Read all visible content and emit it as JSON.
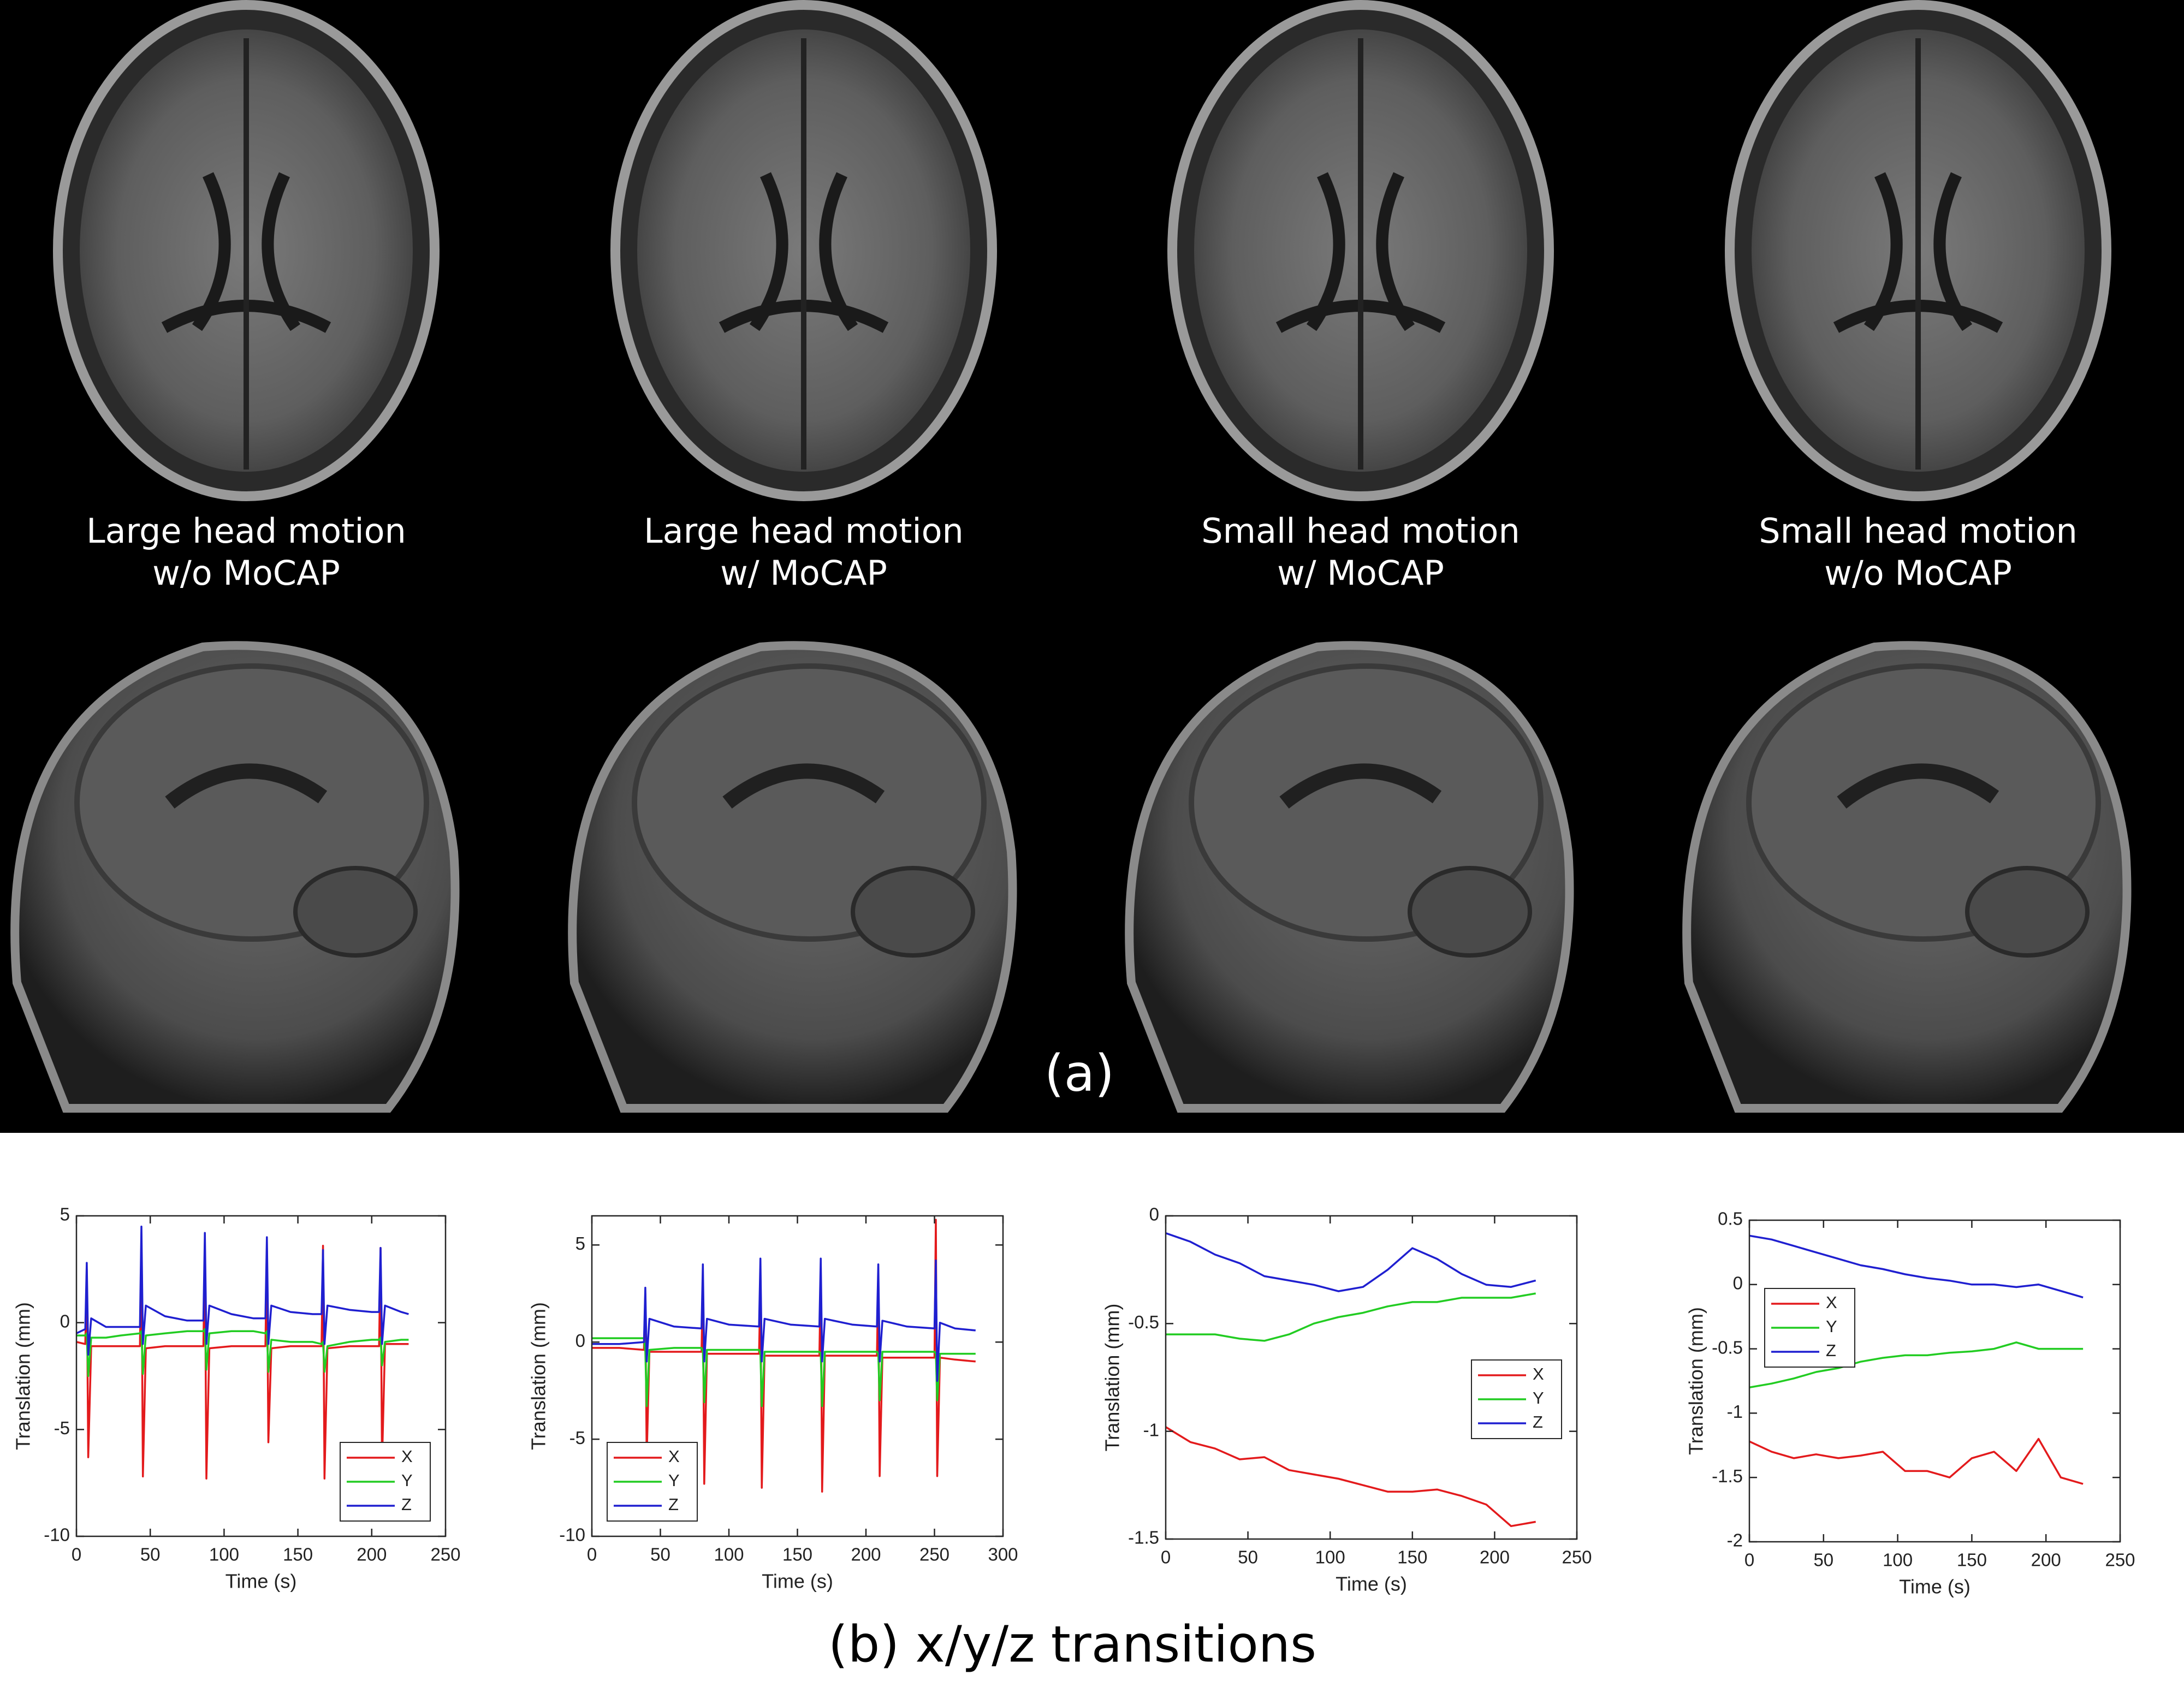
{
  "panel_a": {
    "captions": [
      [
        "Large head motion",
        "w/o MoCAP"
      ],
      [
        "Large head motion",
        "w/ MoCAP"
      ],
      [
        "Small head motion",
        "w/ MoCAP"
      ],
      [
        "Small head motion",
        "w/o MoCAP"
      ]
    ],
    "label": "(a)"
  },
  "panel_b": {
    "label": "(b) x/y/z transitions"
  },
  "chart_data": [
    {
      "type": "line",
      "x_label": "Time (s)",
      "y_label": "Translation (mm)",
      "xlim": [
        0,
        250
      ],
      "xticks": [
        0,
        50,
        100,
        150,
        200,
        250
      ],
      "ylim": [
        -10,
        5
      ],
      "yticks": [
        -10,
        -5,
        0,
        5
      ],
      "legend": "southeast",
      "x": [
        0,
        6,
        7,
        8,
        10,
        20,
        30,
        43,
        44,
        45,
        47,
        60,
        75,
        86,
        87,
        88,
        90,
        105,
        120,
        128,
        129,
        130,
        132,
        145,
        160,
        166,
        167,
        168,
        170,
        185,
        200,
        205,
        206,
        207,
        209,
        220,
        225
      ],
      "series": [
        {
          "name": "X",
          "color": "#e31a1c",
          "values": [
            -0.9,
            -1,
            2.5,
            -6.3,
            -1.1,
            -1.1,
            -1.1,
            -1.1,
            4,
            -7.2,
            -1.2,
            -1.1,
            -1.1,
            -1.1,
            3.7,
            -7.3,
            -1.2,
            -1.1,
            -1.1,
            -1.1,
            3.5,
            -5.6,
            -1.2,
            -1.1,
            -1.1,
            -1.1,
            3.6,
            -7.3,
            -1.2,
            -1.1,
            -1.1,
            -1.1,
            3.5,
            -6.6,
            -1,
            -1,
            -1
          ]
        },
        {
          "name": "Y",
          "color": "#22cc22",
          "values": [
            -0.6,
            -0.6,
            -0.5,
            -2.5,
            -0.7,
            -0.7,
            -0.6,
            -0.5,
            -0.4,
            -2.4,
            -0.6,
            -0.5,
            -0.4,
            -0.4,
            -0.3,
            -2.2,
            -0.5,
            -0.4,
            -0.4,
            -0.5,
            -0.4,
            -2.3,
            -0.8,
            -0.9,
            -0.9,
            -1,
            -0.9,
            -2.3,
            -1.1,
            -0.9,
            -0.8,
            -0.8,
            -0.7,
            -2,
            -0.9,
            -0.8,
            -0.8
          ]
        },
        {
          "name": "Z",
          "color": "#1f1fd0",
          "values": [
            -0.5,
            -0.3,
            2.8,
            -1.5,
            0.2,
            -0.2,
            -0.2,
            -0.2,
            4.5,
            -1,
            0.8,
            0.3,
            0.1,
            0.1,
            4.2,
            -1,
            0.8,
            0.4,
            0.2,
            0.2,
            4,
            -1,
            0.8,
            0.5,
            0.4,
            0.4,
            3.4,
            -1,
            0.8,
            0.6,
            0.5,
            0.5,
            3.5,
            -1,
            0.8,
            0.5,
            0.4
          ]
        }
      ]
    },
    {
      "type": "line",
      "x_label": "Time (s)",
      "y_label": "Translation (mm)",
      "xlim": [
        0,
        300
      ],
      "xticks": [
        0,
        50,
        100,
        150,
        200,
        250,
        300
      ],
      "ylim": [
        -10,
        6.5
      ],
      "yticks": [
        -10,
        -5,
        0,
        5
      ],
      "legend": "southwest",
      "x": [
        0,
        20,
        38,
        39,
        40,
        42,
        60,
        80,
        81,
        82,
        84,
        100,
        122,
        123,
        124,
        126,
        145,
        166,
        167,
        168,
        170,
        190,
        208,
        209,
        210,
        212,
        230,
        250,
        251,
        252,
        254,
        265,
        280
      ],
      "series": [
        {
          "name": "X",
          "color": "#e31a1c",
          "values": [
            -0.3,
            -0.3,
            -0.4,
            2.5,
            -6,
            -0.5,
            -0.5,
            -0.5,
            3,
            -7.3,
            -0.6,
            -0.6,
            -0.6,
            3,
            -7.5,
            -0.7,
            -0.7,
            -0.7,
            3.5,
            -7.7,
            -0.7,
            -0.7,
            -0.7,
            3.5,
            -6.9,
            -0.8,
            -0.8,
            -0.8,
            6.3,
            -6.9,
            -0.8,
            -0.9,
            -1
          ]
        },
        {
          "name": "Y",
          "color": "#22cc22",
          "values": [
            0.2,
            0.2,
            0.2,
            -0.5,
            -3.3,
            -0.4,
            -0.3,
            -0.3,
            -0.5,
            -3.1,
            -0.4,
            -0.4,
            -0.4,
            -0.6,
            -3.3,
            -0.5,
            -0.5,
            -0.5,
            -0.6,
            -3.3,
            -0.5,
            -0.5,
            -0.5,
            -0.6,
            -3,
            -0.5,
            -0.5,
            -0.5,
            -0.6,
            -3,
            -0.6,
            -0.6,
            -0.6
          ]
        },
        {
          "name": "Z",
          "color": "#1f1fd0",
          "values": [
            -0.1,
            -0.1,
            0,
            2.8,
            -1,
            1.2,
            0.8,
            0.7,
            4,
            -1,
            1.2,
            0.9,
            0.8,
            4.3,
            -1,
            1.2,
            0.9,
            0.8,
            4.3,
            -1,
            1.2,
            0.9,
            0.8,
            4,
            -1,
            1.1,
            0.8,
            0.7,
            4.2,
            -2,
            1,
            0.7,
            0.6
          ]
        }
      ]
    },
    {
      "type": "line",
      "x_label": "Time (s)",
      "y_label": "Translation (mm)",
      "xlim": [
        0,
        250
      ],
      "xticks": [
        0,
        50,
        100,
        150,
        200,
        250
      ],
      "ylim": [
        -1.5,
        0
      ],
      "yticks": [
        -1.5,
        -1,
        -0.5,
        0
      ],
      "legend": "east",
      "x": [
        0,
        15,
        30,
        45,
        60,
        75,
        90,
        105,
        120,
        135,
        150,
        165,
        180,
        195,
        210,
        225
      ],
      "series": [
        {
          "name": "X",
          "color": "#e31a1c",
          "values": [
            -0.98,
            -1.05,
            -1.08,
            -1.13,
            -1.12,
            -1.18,
            -1.2,
            -1.22,
            -1.25,
            -1.28,
            -1.28,
            -1.27,
            -1.3,
            -1.34,
            -1.44,
            -1.42
          ]
        },
        {
          "name": "Y",
          "color": "#22cc22",
          "values": [
            -0.55,
            -0.55,
            -0.55,
            -0.57,
            -0.58,
            -0.55,
            -0.5,
            -0.47,
            -0.45,
            -0.42,
            -0.4,
            -0.4,
            -0.38,
            -0.38,
            -0.38,
            -0.36
          ]
        },
        {
          "name": "Z",
          "color": "#1f1fd0",
          "values": [
            -0.08,
            -0.12,
            -0.18,
            -0.22,
            -0.28,
            -0.3,
            -0.32,
            -0.35,
            -0.33,
            -0.25,
            -0.15,
            -0.2,
            -0.27,
            -0.32,
            -0.33,
            -0.3
          ]
        }
      ]
    },
    {
      "type": "line",
      "x_label": "Time (s)",
      "y_label": "Translation (mm)",
      "xlim": [
        0,
        250
      ],
      "xticks": [
        0,
        50,
        100,
        150,
        200,
        250
      ],
      "ylim": [
        -2,
        0.5
      ],
      "yticks": [
        -2,
        -1.5,
        -1,
        -0.5,
        0,
        0.5
      ],
      "legend": "northwest",
      "x": [
        0,
        15,
        30,
        45,
        60,
        75,
        90,
        105,
        120,
        135,
        150,
        165,
        180,
        195,
        210,
        225
      ],
      "series": [
        {
          "name": "X",
          "color": "#e31a1c",
          "values": [
            -1.22,
            -1.3,
            -1.35,
            -1.32,
            -1.35,
            -1.33,
            -1.3,
            -1.45,
            -1.45,
            -1.5,
            -1.35,
            -1.3,
            -1.45,
            -1.2,
            -1.5,
            -1.55
          ]
        },
        {
          "name": "Y",
          "color": "#22cc22",
          "values": [
            -0.8,
            -0.77,
            -0.73,
            -0.68,
            -0.65,
            -0.6,
            -0.57,
            -0.55,
            -0.55,
            -0.53,
            -0.52,
            -0.5,
            -0.45,
            -0.5,
            -0.5,
            -0.5
          ]
        },
        {
          "name": "Z",
          "color": "#1f1fd0",
          "values": [
            0.38,
            0.35,
            0.3,
            0.25,
            0.2,
            0.15,
            0.12,
            0.08,
            0.05,
            0.03,
            0,
            0,
            -0.02,
            0,
            -0.05,
            -0.1
          ]
        }
      ]
    }
  ]
}
